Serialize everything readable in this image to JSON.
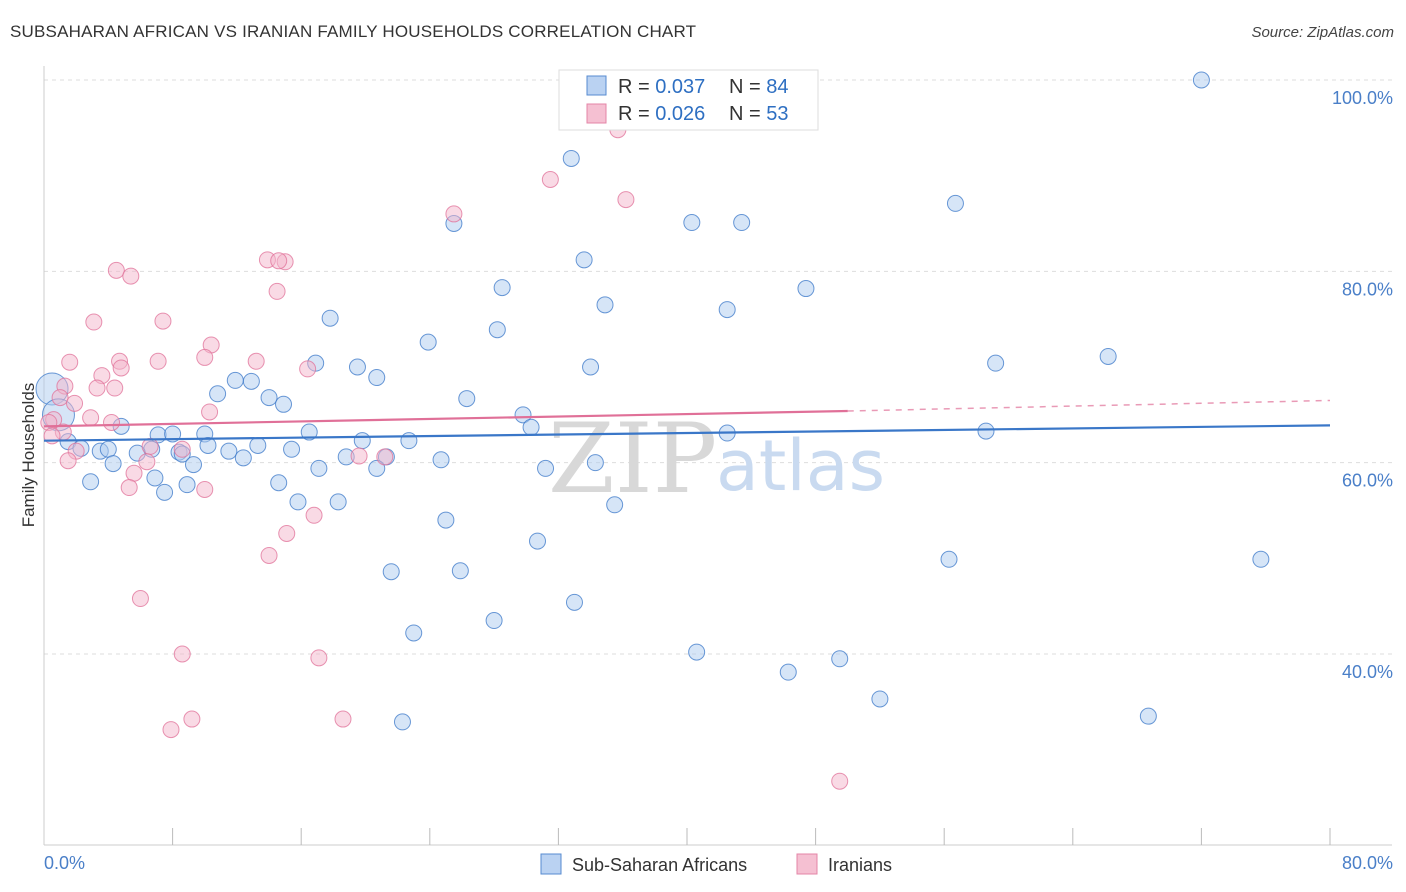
{
  "header": {
    "title": "SUBSAHARAN AFRICAN VS IRANIAN FAMILY HOUSEHOLDS CORRELATION CHART",
    "source": "Source: ZipAtlas.com"
  },
  "legend": {
    "blue": {
      "r_label": "R = ",
      "r_value": "0.037",
      "n_label": "N = ",
      "n_value": "84"
    },
    "pink": {
      "r_label": "R = ",
      "r_value": "0.026",
      "n_label": "N = ",
      "n_value": "53"
    }
  },
  "watermark": {
    "zip": "ZIP",
    "atlas": "atlas"
  },
  "colors": {
    "blue": "#3a77c8",
    "blue_fill": "#aecbf0",
    "pink": "#e07098",
    "pink_fill": "#f4b6cb",
    "grid": "#dddddd"
  },
  "chart_data": {
    "type": "scatter",
    "title": "SUBSAHARAN AFRICAN VS IRANIAN FAMILY HOUSEHOLDS CORRELATION CHART",
    "xlabel": "",
    "ylabel": "Family Households",
    "xlim": [
      0,
      80
    ],
    "ylim": [
      18,
      104
    ],
    "x_tick_labels": {
      "left": "0.0%",
      "right": "80.0%"
    },
    "y_ticks": [
      {
        "value": 100,
        "label": "100.0%"
      },
      {
        "value": 80,
        "label": "80.0%"
      },
      {
        "value": 60,
        "label": "60.0%"
      },
      {
        "value": 40,
        "label": "40.0%"
      }
    ],
    "series": [
      {
        "name": "Sub-Saharan Africans",
        "color": "blue",
        "trend": {
          "x0": 0,
          "y0": 62.3,
          "x1": 80,
          "y1": 63.9
        },
        "points": [
          [
            72.0,
            100.0
          ],
          [
            32.8,
            91.8
          ],
          [
            56.7,
            87.1
          ],
          [
            25.5,
            85.0
          ],
          [
            40.3,
            85.1
          ],
          [
            43.4,
            85.1
          ],
          [
            33.6,
            81.2
          ],
          [
            28.5,
            78.3
          ],
          [
            47.4,
            78.2
          ],
          [
            34.9,
            76.5
          ],
          [
            42.5,
            76.0
          ],
          [
            17.8,
            75.1
          ],
          [
            28.2,
            73.9
          ],
          [
            23.9,
            72.6
          ],
          [
            66.2,
            71.1
          ],
          [
            59.2,
            70.4
          ],
          [
            34.0,
            70.0
          ],
          [
            16.9,
            70.4
          ],
          [
            19.5,
            70.0
          ],
          [
            20.7,
            68.9
          ],
          [
            11.9,
            68.6
          ],
          [
            12.9,
            68.5
          ],
          [
            10.8,
            67.2
          ],
          [
            14.0,
            66.8
          ],
          [
            0.5,
            67.7
          ],
          [
            26.3,
            66.7
          ],
          [
            14.9,
            66.1
          ],
          [
            29.8,
            65.0
          ],
          [
            0.9,
            65.0
          ],
          [
            30.3,
            63.7
          ],
          [
            4.8,
            63.8
          ],
          [
            16.5,
            63.2
          ],
          [
            7.1,
            62.9
          ],
          [
            8.0,
            63.0
          ],
          [
            10.0,
            63.0
          ],
          [
            42.5,
            63.1
          ],
          [
            58.6,
            63.3
          ],
          [
            1.5,
            62.2
          ],
          [
            19.8,
            62.3
          ],
          [
            22.7,
            62.3
          ],
          [
            10.2,
            61.8
          ],
          [
            13.3,
            61.8
          ],
          [
            2.3,
            61.5
          ],
          [
            3.5,
            61.2
          ],
          [
            4.0,
            61.4
          ],
          [
            6.7,
            61.4
          ],
          [
            8.4,
            61.1
          ],
          [
            11.5,
            61.2
          ],
          [
            15.4,
            61.4
          ],
          [
            5.8,
            61.0
          ],
          [
            8.6,
            60.9
          ],
          [
            21.3,
            60.6
          ],
          [
            12.4,
            60.5
          ],
          [
            18.8,
            60.6
          ],
          [
            24.7,
            60.3
          ],
          [
            4.3,
            59.9
          ],
          [
            9.3,
            59.8
          ],
          [
            17.1,
            59.4
          ],
          [
            20.7,
            59.4
          ],
          [
            31.2,
            59.4
          ],
          [
            34.3,
            60.0
          ],
          [
            2.9,
            58.0
          ],
          [
            6.9,
            58.4
          ],
          [
            8.9,
            57.7
          ],
          [
            14.6,
            57.9
          ],
          [
            7.5,
            56.9
          ],
          [
            15.8,
            55.9
          ],
          [
            18.3,
            55.9
          ],
          [
            35.5,
            55.6
          ],
          [
            25.0,
            54.0
          ],
          [
            30.7,
            51.8
          ],
          [
            56.3,
            49.9
          ],
          [
            75.7,
            49.9
          ],
          [
            21.6,
            48.6
          ],
          [
            25.9,
            48.7
          ],
          [
            33.0,
            45.4
          ],
          [
            28.0,
            43.5
          ],
          [
            23.0,
            42.2
          ],
          [
            40.6,
            40.2
          ],
          [
            49.5,
            39.5
          ],
          [
            46.3,
            38.1
          ],
          [
            52.0,
            35.3
          ],
          [
            68.7,
            33.5
          ],
          [
            22.3,
            32.9
          ]
        ]
      },
      {
        "name": "Iranians",
        "color": "pink",
        "trend": {
          "x0": 0,
          "y0": 63.8,
          "x1": 50,
          "y1": 65.4,
          "dash_to": 80,
          "dash_y": 66.5
        },
        "points": [
          [
            35.7,
            94.8
          ],
          [
            31.5,
            89.6
          ],
          [
            36.2,
            87.5
          ],
          [
            25.5,
            86.0
          ],
          [
            13.9,
            81.2
          ],
          [
            15.0,
            81.0
          ],
          [
            4.5,
            80.1
          ],
          [
            5.4,
            79.5
          ],
          [
            14.5,
            77.9
          ],
          [
            3.1,
            74.7
          ],
          [
            7.4,
            74.8
          ],
          [
            10.4,
            72.3
          ],
          [
            1.6,
            70.5
          ],
          [
            4.7,
            70.6
          ],
          [
            10.0,
            71.0
          ],
          [
            13.2,
            70.6
          ],
          [
            7.1,
            70.6
          ],
          [
            4.8,
            69.9
          ],
          [
            16.4,
            69.8
          ],
          [
            3.6,
            69.1
          ],
          [
            1.3,
            68.0
          ],
          [
            3.3,
            67.8
          ],
          [
            4.4,
            67.8
          ],
          [
            1.0,
            66.8
          ],
          [
            1.9,
            66.2
          ],
          [
            10.3,
            65.3
          ],
          [
            2.9,
            64.7
          ],
          [
            4.2,
            64.2
          ],
          [
            0.6,
            64.5
          ],
          [
            0.3,
            64.2
          ],
          [
            1.2,
            63.2
          ],
          [
            0.5,
            62.8
          ],
          [
            6.6,
            61.7
          ],
          [
            8.6,
            61.4
          ],
          [
            2.0,
            61.2
          ],
          [
            21.2,
            60.6
          ],
          [
            19.6,
            60.7
          ],
          [
            1.5,
            60.2
          ],
          [
            6.4,
            60.1
          ],
          [
            5.6,
            58.9
          ],
          [
            10.0,
            57.2
          ],
          [
            5.3,
            57.4
          ],
          [
            15.1,
            52.6
          ],
          [
            14.0,
            50.3
          ],
          [
            16.8,
            54.5
          ],
          [
            6.0,
            45.8
          ],
          [
            8.6,
            40.0
          ],
          [
            17.1,
            39.6
          ],
          [
            9.2,
            33.2
          ],
          [
            18.6,
            33.2
          ],
          [
            7.9,
            32.1
          ],
          [
            49.5,
            26.7
          ],
          [
            14.6,
            81.1
          ]
        ]
      }
    ]
  }
}
